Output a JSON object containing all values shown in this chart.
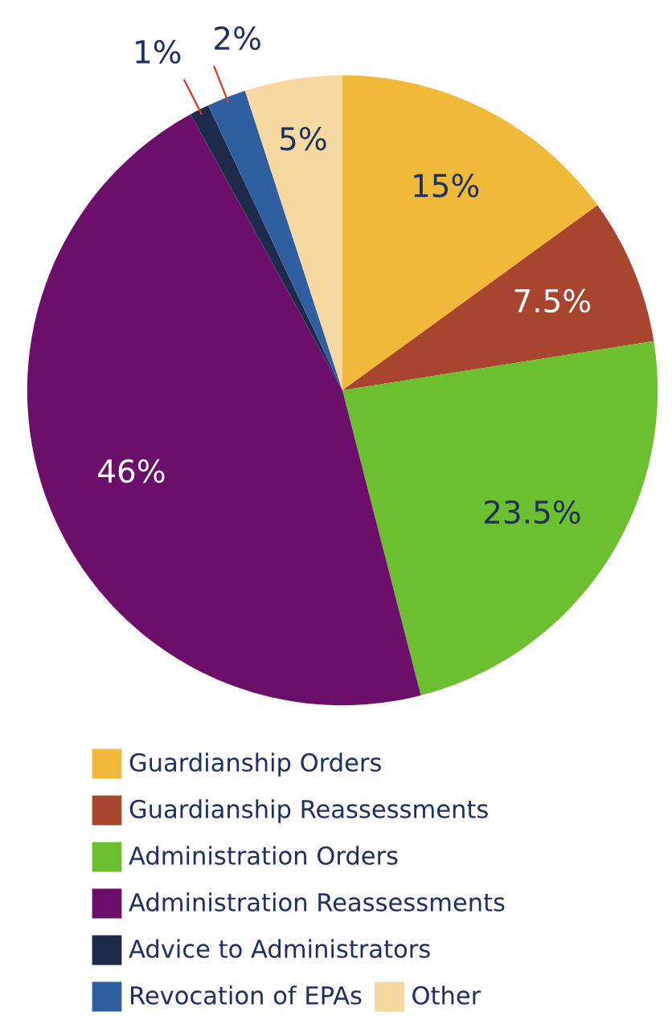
{
  "chart_data": {
    "type": "pie",
    "categories": [
      "Guardianship Orders",
      "Guardianship Reassessments",
      "Administration Orders",
      "Administration Reassessments",
      "Advice to Administrators",
      "Revocation of EPAs",
      "Other"
    ],
    "values": [
      15,
      7.5,
      23.5,
      46,
      1,
      2,
      5
    ],
    "value_labels": [
      "15%",
      "7.5%",
      "23.5%",
      "46%",
      "1%",
      "2%",
      "5%"
    ],
    "colors": [
      "#f0b93a",
      "#a8452e",
      "#6cbf2e",
      "#6b0f6b",
      "#1e2a4a",
      "#2f5fa0",
      "#f5d9a0"
    ],
    "legend": "bottom"
  }
}
